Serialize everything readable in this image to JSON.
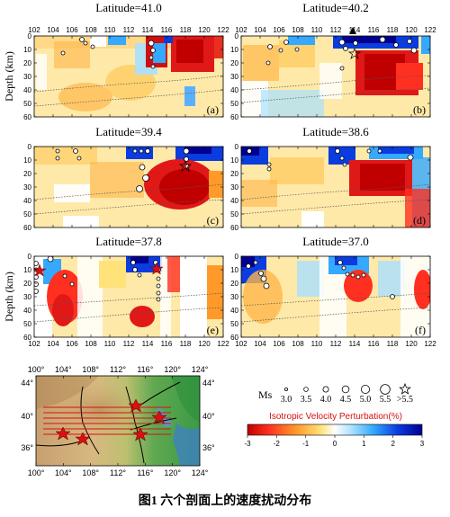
{
  "figure": {
    "caption": "图1 六个剖面上的速度扰动分布",
    "y_axis_label": "Depth (km)",
    "x_tick_labels": [
      "102",
      "104",
      "106",
      "108",
      "110",
      "112",
      "114",
      "116",
      "118",
      "120",
      "122"
    ],
    "y_tick_labels": [
      "0",
      "10",
      "20",
      "30",
      "40",
      "50",
      "60"
    ],
    "panels": [
      {
        "id": "a",
        "title": "Latitude=41.0",
        "tag": "(a)"
      },
      {
        "id": "b",
        "title": "Latitude=40.2",
        "tag": "(b)"
      },
      {
        "id": "c",
        "title": "Latitude=39.4",
        "tag": "(c)"
      },
      {
        "id": "d",
        "title": "Latitude=38.6",
        "tag": "(d)"
      },
      {
        "id": "e",
        "title": "Latitude=37.8",
        "tag": "(e)"
      },
      {
        "id": "f",
        "title": "Latitude=37.0",
        "tag": "(f)"
      }
    ]
  },
  "map": {
    "top_lon_labels": [
      "100°",
      "104°",
      "108°",
      "112°",
      "116°",
      "120°",
      "124°"
    ],
    "bottom_lon_labels": [
      "100°",
      "104°",
      "108°",
      "112°",
      "116°",
      "120°",
      "124°"
    ],
    "left_lat_labels": [
      "44°",
      "40°",
      "36°"
    ],
    "right_lat_labels": [
      "44°",
      "40°",
      "36°"
    ]
  },
  "magnitude_legend": {
    "prefix": "Ms",
    "labels": [
      "3.0",
      "3.5",
      "4.0",
      "4.5",
      "5.0",
      "5.5",
      ">5.5"
    ]
  },
  "colorbar": {
    "title": "Isotropic Velocity Perturbation(%)",
    "tick_labels": [
      "-3",
      "-2",
      "-1",
      "0",
      "1",
      "2",
      "3"
    ],
    "colors": [
      "#c00000",
      "#ff3020",
      "#ff9a2a",
      "#ffe27a",
      "#ffffff",
      "#a8e0ff",
      "#35a8ff",
      "#0a3ce0",
      "#000090"
    ]
  }
}
